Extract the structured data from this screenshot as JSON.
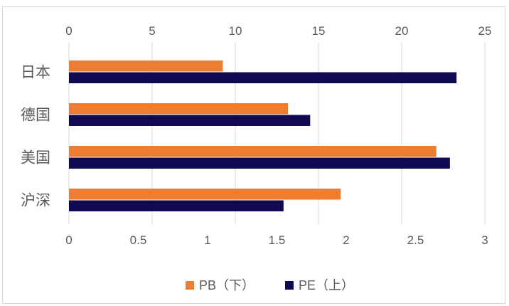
{
  "chart_data": {
    "type": "bar",
    "orientation": "horizontal",
    "categories": [
      "日本",
      "德国",
      "美国",
      "沪深"
    ],
    "series": [
      {
        "name": "PB（下）",
        "axis": "bottom",
        "color": "#ed7d31",
        "values": [
          1.11,
          1.58,
          2.65,
          1.96
        ]
      },
      {
        "name": "PE（上）",
        "axis": "top",
        "color": "#0f0a52",
        "values": [
          23.3,
          14.5,
          22.9,
          12.9
        ]
      }
    ],
    "top_axis": {
      "min": 0,
      "max": 25,
      "ticks": [
        "0",
        "5",
        "10",
        "15",
        "20",
        "25"
      ]
    },
    "bottom_axis": {
      "min": 0,
      "max": 3,
      "ticks": [
        "0",
        "0.5",
        "1",
        "1.5",
        "2",
        "2.5",
        "3"
      ]
    },
    "grid": true,
    "legend_position": "bottom"
  }
}
